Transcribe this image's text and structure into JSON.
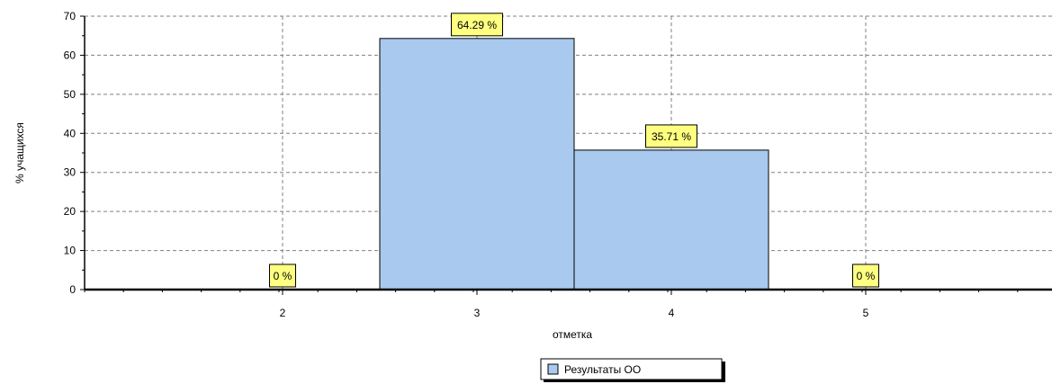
{
  "chart_data": {
    "type": "bar",
    "categories": [
      "2",
      "3",
      "4",
      "5"
    ],
    "series": [
      {
        "name": "Результаты ОО",
        "values": [
          0,
          64.29,
          35.71,
          0
        ],
        "data_labels": [
          "0 %",
          "64.29 %",
          "35.71 %",
          "0 %"
        ]
      }
    ],
    "xlabel": "отметка",
    "ylabel": "% учащихся",
    "ylim": [
      0,
      70
    ],
    "y_ticks": [
      "0",
      "10",
      "20",
      "30",
      "40",
      "50",
      "60",
      "70"
    ],
    "grid": true,
    "legend_position": "bottom-center"
  },
  "colors": {
    "bar_fill": "#a9c9ee",
    "bar_stroke": "#000000",
    "label_fill": "#ffff80",
    "grid": "#808080"
  }
}
